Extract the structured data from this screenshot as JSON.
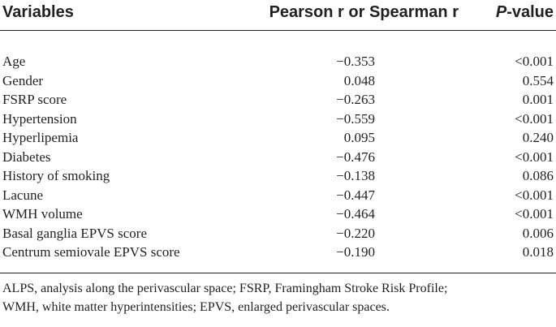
{
  "table": {
    "headers": {
      "variables": "Variables",
      "correlation": "Pearson r or Spearman r",
      "p_italic": "P",
      "p_suffix": "-value"
    },
    "rows": [
      {
        "variable": "Age",
        "r": "−0.353",
        "p": "<0.001"
      },
      {
        "variable": "Gender",
        "r": "0.048",
        "p": "0.554"
      },
      {
        "variable": "FSRP score",
        "r": "−0.263",
        "p": "0.001"
      },
      {
        "variable": "Hypertension",
        "r": "−0.559",
        "p": "<0.001"
      },
      {
        "variable": "Hyperlipemia",
        "r": "0.095",
        "p": "0.240"
      },
      {
        "variable": "Diabetes",
        "r": "−0.476",
        "p": "<0.001"
      },
      {
        "variable": "History of smoking",
        "r": "−0.138",
        "p": "0.086"
      },
      {
        "variable": "Lacune",
        "r": "−0.447",
        "p": "<0.001"
      },
      {
        "variable": "WMH volume",
        "r": "−0.464",
        "p": "<0.001"
      },
      {
        "variable": "Basal ganglia EPVS score",
        "r": "−0.220",
        "p": "0.006"
      },
      {
        "variable": "Centrum semiovale EPVS score",
        "r": "−0.190",
        "p": "0.018"
      }
    ]
  },
  "footnote": {
    "line1": "ALPS, analysis along the perivascular space; FSRP, Framingham Stroke Risk Profile;",
    "line2": "WMH, white matter hyperintensities; EPVS, enlarged perivascular spaces."
  }
}
